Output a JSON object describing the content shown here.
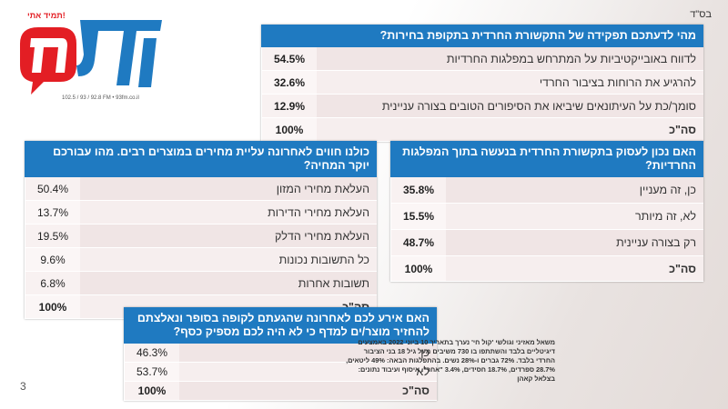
{
  "header": {
    "bsd": "בס\"ד",
    "page_number": "3"
  },
  "logo": {
    "brand": "קול חי",
    "tagline": "תמיד אתי!",
    "frequencies": "102.5 / 93 / 92.8 FM • 93fm.co.il",
    "colors": {
      "blue": "#1f7ac1",
      "red": "#e31e24"
    }
  },
  "q1": {
    "question": "מהי לדעתכם תפקידה של התקשורת החרדית בתקופת בחירות?",
    "rows": [
      {
        "label": "לדווח באובייקטיביות על המתרחש במפלגות החרדיות",
        "value": "54.5%"
      },
      {
        "label": "להרגיע את הרוחות בציבור החרדי",
        "value": "32.6%"
      },
      {
        "label": "סומך/כת על העיתונאים שיביאו את הסיפורים הטובים בצורה עניינית",
        "value": "12.9%"
      }
    ],
    "total_label": "סה\"כ",
    "total_value": "100%"
  },
  "q2": {
    "question": "כולנו חווים לאחרונה עליית מחירים במוצרים רבים. מהו עבורכם יוקר המחיה?",
    "rows": [
      {
        "label": "העלאת מחירי המזון",
        "value": "50.4%"
      },
      {
        "label": "העלאת מחירי הדירות",
        "value": "13.7%"
      },
      {
        "label": "העלאת מחירי הדלק",
        "value": "19.5%"
      },
      {
        "label": "כל התשובות נכונות",
        "value": "9.6%"
      },
      {
        "label": "תשובות אחרות",
        "value": "6.8%"
      }
    ],
    "total_label": "סה\"כ",
    "total_value": "100%"
  },
  "q3": {
    "question": "האם נכון לעסוק בתקשורת החרדית בנעשה בתוך המפלגות החרדיות?",
    "rows": [
      {
        "label": "כן, זה מעניין",
        "value": "35.8%"
      },
      {
        "label": "לא, זה מיותר",
        "value": "15.5%"
      },
      {
        "label": "רק בצורה עניינית",
        "value": "48.7%"
      }
    ],
    "total_label": "סה\"כ",
    "total_value": "100%"
  },
  "q4": {
    "question": "האם אירע לכם לאחרונה שהגעתם לקופה בסופר ונאלצתם להחזיר מוצר/ים למדף כי לא היה לכם מספיק כסף?",
    "rows": [
      {
        "label": "כן",
        "value": "46.3%"
      },
      {
        "label": "לא",
        "value": "53.7%"
      }
    ],
    "total_label": "סה\"כ",
    "total_value": "100%"
  },
  "footnote": "משאל מאזיני וגולשי 'קול חי' נערך בתאריך 10 ביוני 2022 באמצעים דיגיטליים בלבד והשתתפו בו 730 משיבים מעל גיל 18 בני הציבור החרדי בלבד. 72% גברים ו-28% נשים. בהתפלגות הבאה: 49% ליטאים, 28.7% ספרדים, 18.7% חסידים, 3.4% \"אחר\". איסוף ועיבוד נתונים: בצלאל קאהן"
}
